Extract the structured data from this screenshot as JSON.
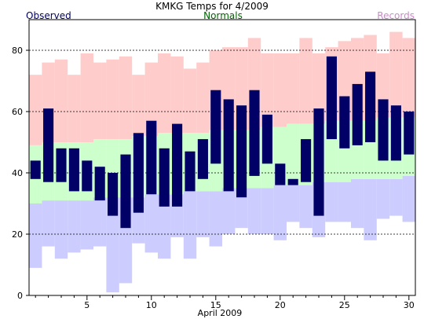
{
  "chart_data": {
    "type": "bar",
    "title": "KMKG Temps for 4/2009",
    "xlabel": "April 2009",
    "ylabel": "",
    "legend": [
      {
        "name": "Observed",
        "color": "#000066",
        "placement": "top-left"
      },
      {
        "name": "Normals",
        "color": "#006600",
        "placement": "top-center"
      },
      {
        "name": "Records",
        "color": "#cc88cc",
        "placement": "top-right"
      }
    ],
    "xlim": [
      0.5,
      30.5
    ],
    "ylim": [
      0,
      90
    ],
    "x_ticks_labeled": [
      5,
      10,
      15,
      20,
      25,
      30
    ],
    "y_ticks": [
      0,
      20,
      40,
      60,
      80
    ],
    "grid": "dashed horizontal at 20, 40, 60, 80",
    "days": [
      1,
      2,
      3,
      4,
      5,
      6,
      7,
      8,
      9,
      10,
      11,
      12,
      13,
      14,
      15,
      16,
      17,
      18,
      19,
      20,
      21,
      22,
      23,
      24,
      25,
      26,
      27,
      28,
      29,
      30
    ],
    "series": [
      {
        "name": "Records",
        "color_high": "#ffcccc",
        "color_low": "#ccccff",
        "record_high": [
          72,
          76,
          77,
          72,
          79,
          76,
          77,
          78,
          72,
          76,
          79,
          78,
          74,
          76,
          80,
          81,
          81,
          84,
          79,
          79,
          79,
          84,
          79,
          81,
          83,
          84,
          85,
          79,
          86,
          84
        ],
        "record_low": [
          9,
          16,
          12,
          14,
          15,
          16,
          1,
          4,
          17,
          14,
          12,
          19,
          12,
          19,
          16,
          20,
          22,
          20,
          20,
          18,
          24,
          22,
          19,
          24,
          24,
          22,
          18,
          25,
          26,
          24
        ]
      },
      {
        "name": "Normals",
        "color": "#ccffcc",
        "normal_high": [
          49,
          50,
          50,
          50,
          50,
          51,
          51,
          51,
          52,
          52,
          53,
          53,
          53,
          53,
          54,
          54,
          54,
          54,
          55,
          55,
          56,
          56,
          56,
          57,
          57,
          57,
          57,
          58,
          58,
          58
        ],
        "normal_low": [
          30,
          31,
          31,
          31,
          31,
          32,
          32,
          32,
          32,
          33,
          33,
          33,
          34,
          34,
          34,
          35,
          35,
          35,
          35,
          36,
          36,
          36,
          37,
          37,
          37,
          38,
          38,
          38,
          38,
          39
        ]
      },
      {
        "name": "Observed",
        "color": "#000066",
        "high": [
          44,
          61,
          48,
          48,
          44,
          42,
          40,
          46,
          53,
          57,
          48,
          56,
          47,
          51,
          67,
          64,
          62,
          67,
          59,
          43,
          38,
          51,
          61,
          78,
          65,
          69,
          73,
          64,
          62,
          60
        ],
        "low": [
          38,
          37,
          37,
          34,
          34,
          31,
          26,
          22,
          27,
          33,
          29,
          29,
          34,
          38,
          43,
          34,
          32,
          39,
          43,
          36,
          36,
          37,
          26,
          51,
          48,
          49,
          50,
          44,
          44,
          46
        ]
      }
    ]
  }
}
